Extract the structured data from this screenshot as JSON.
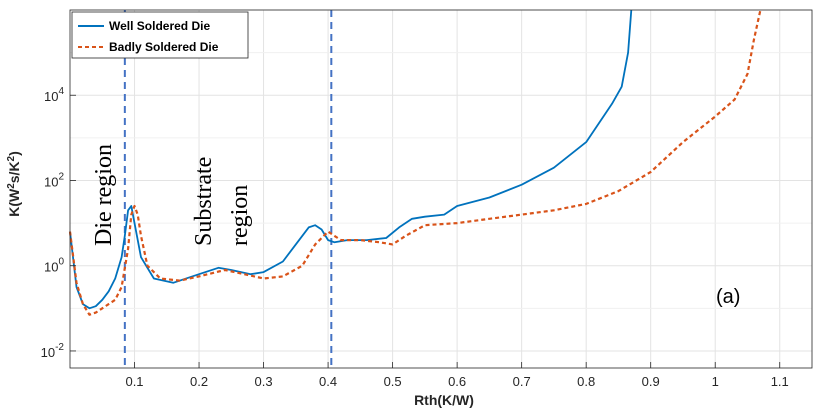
{
  "chart_data": {
    "type": "line",
    "title": "",
    "xlabel": "Rth(K/W)",
    "ylabel": "K(W²s/K²)",
    "x_scale": "linear",
    "y_scale": "log",
    "xlim": [
      0,
      1.15
    ],
    "ylim_log10": [
      -2.4,
      6.0
    ],
    "x_ticks": [
      0.1,
      0.2,
      0.3,
      0.4,
      0.5,
      0.6,
      0.7,
      0.8,
      0.9,
      1,
      1.1
    ],
    "x_tick_labels": [
      "0.1",
      "0.2",
      "0.3",
      "0.4",
      "0.5",
      "0.6",
      "0.7",
      "0.8",
      "0.9",
      "1",
      "1.1"
    ],
    "y_tick_exponents": [
      -2,
      0,
      2,
      4
    ],
    "y_tick_labels": [
      {
        "base": "10",
        "exp": "-2"
      },
      {
        "base": "10",
        "exp": "0"
      },
      {
        "base": "10",
        "exp": "2"
      },
      {
        "base": "10",
        "exp": "4"
      }
    ],
    "grid": true,
    "legend_position": "top-left",
    "series": [
      {
        "name": "Well Soldered Die",
        "color": "#0072BD",
        "style": "solid",
        "x": [
          0.0,
          0.01,
          0.02,
          0.03,
          0.04,
          0.05,
          0.06,
          0.07,
          0.08,
          0.085,
          0.09,
          0.095,
          0.1,
          0.11,
          0.13,
          0.16,
          0.2,
          0.23,
          0.25,
          0.28,
          0.3,
          0.33,
          0.35,
          0.37,
          0.38,
          0.39,
          0.4,
          0.41,
          0.43,
          0.46,
          0.49,
          0.51,
          0.53,
          0.55,
          0.58,
          0.6,
          0.65,
          0.7,
          0.75,
          0.8,
          0.84,
          0.855,
          0.865,
          0.87
        ],
        "y_log10": [
          0.8,
          -0.5,
          -0.9,
          -1.0,
          -0.95,
          -0.8,
          -0.6,
          -0.3,
          0.2,
          0.7,
          1.3,
          1.4,
          1.0,
          0.2,
          -0.3,
          -0.4,
          -0.2,
          -0.05,
          -0.1,
          -0.2,
          -0.15,
          0.1,
          0.5,
          0.9,
          0.95,
          0.85,
          0.6,
          0.55,
          0.6,
          0.6,
          0.65,
          0.9,
          1.1,
          1.15,
          1.2,
          1.4,
          1.6,
          1.9,
          2.3,
          2.9,
          3.8,
          4.2,
          5.0,
          6.0
        ]
      },
      {
        "name": "Badly Soldered Die",
        "color": "#D95319",
        "style": "dashed",
        "x": [
          0.0,
          0.01,
          0.02,
          0.03,
          0.04,
          0.05,
          0.06,
          0.07,
          0.08,
          0.09,
          0.095,
          0.1,
          0.105,
          0.11,
          0.12,
          0.14,
          0.17,
          0.2,
          0.24,
          0.27,
          0.3,
          0.33,
          0.36,
          0.38,
          0.4,
          0.41,
          0.42,
          0.45,
          0.48,
          0.5,
          0.52,
          0.55,
          0.6,
          0.65,
          0.7,
          0.75,
          0.8,
          0.85,
          0.9,
          0.95,
          1.0,
          1.03,
          1.05,
          1.06,
          1.07
        ],
        "y_log10": [
          0.8,
          -0.4,
          -0.9,
          -1.15,
          -1.1,
          -1.0,
          -0.9,
          -0.8,
          -0.5,
          0.4,
          1.2,
          1.4,
          1.2,
          0.7,
          0.0,
          -0.3,
          -0.35,
          -0.25,
          -0.1,
          -0.2,
          -0.3,
          -0.25,
          0.0,
          0.5,
          0.8,
          0.7,
          0.6,
          0.6,
          0.55,
          0.5,
          0.7,
          0.95,
          1.0,
          1.1,
          1.2,
          1.3,
          1.45,
          1.75,
          2.2,
          2.9,
          3.5,
          3.9,
          4.5,
          5.3,
          6.0
        ]
      }
    ],
    "vertical_lines": [
      {
        "x": 0.085,
        "color": "#4472C4",
        "style": "dashed"
      },
      {
        "x": 0.405,
        "color": "#4472C4",
        "style": "dashed"
      }
    ],
    "annotations": [
      {
        "id": "die",
        "lines": [
          "Die region"
        ],
        "rotation": -90
      },
      {
        "id": "substrate",
        "lines": [
          "Substrate",
          "region"
        ],
        "rotation": -90
      },
      {
        "id": "panel",
        "lines": [
          "(a)"
        ],
        "rotation": 0
      }
    ]
  }
}
